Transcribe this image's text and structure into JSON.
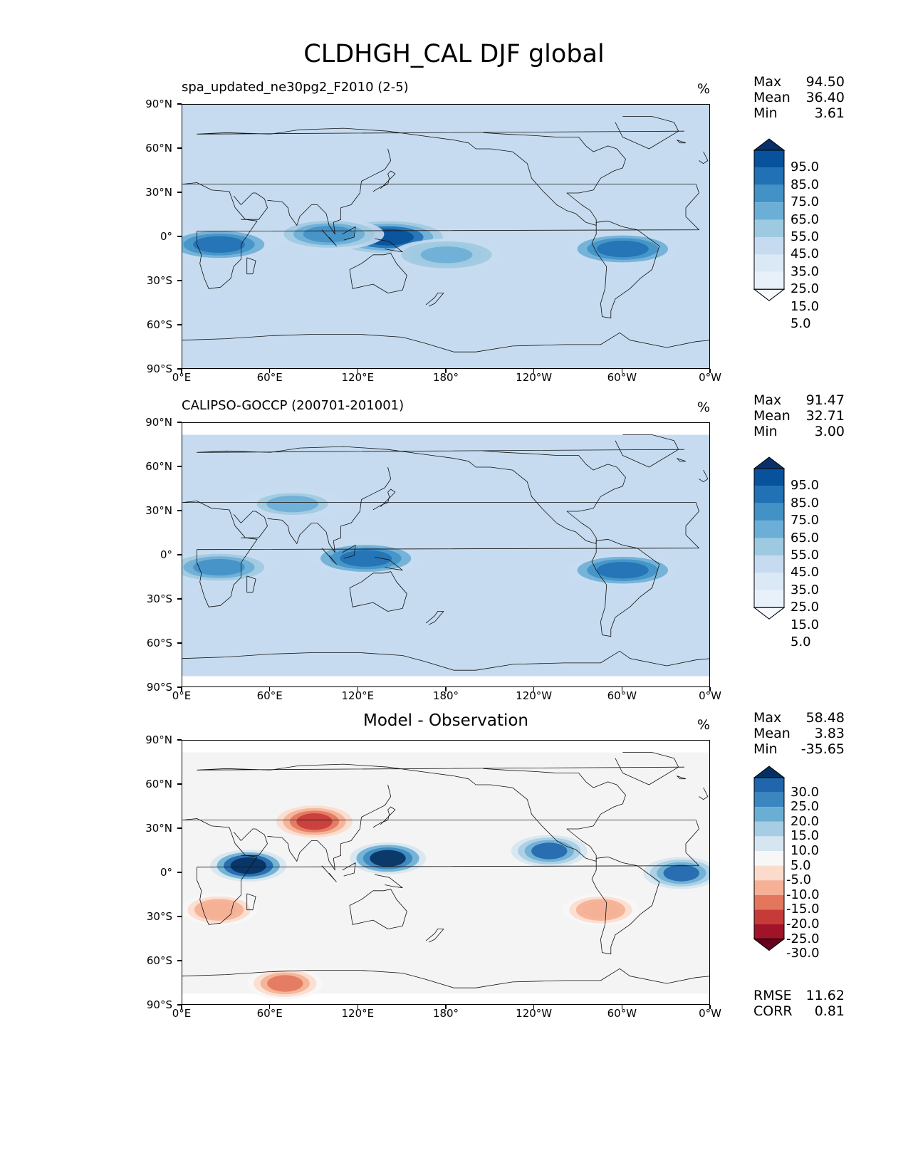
{
  "title": "CLDHGH_CAL DJF global",
  "panels": [
    {
      "name": "model",
      "left_title": "spa_updated_ne30pg2_F2010 (2-5)",
      "center_title": "",
      "units": "%",
      "stats": [
        [
          "Max",
          "94.50"
        ],
        [
          "Mean",
          "36.40"
        ],
        [
          "Min",
          "3.61"
        ]
      ],
      "colorbar": {
        "labels": [
          "95.0",
          "85.0",
          "75.0",
          "65.0",
          "55.0",
          "45.0",
          "35.0",
          "25.0",
          "15.0",
          "5.0"
        ],
        "colors": [
          "#08306b",
          "#08519c",
          "#2171b5",
          "#4292c6",
          "#6baed6",
          "#9ecae1",
          "#c6dbef",
          "#dbe9f6",
          "#e8f1fa",
          "#f7fbff"
        ]
      },
      "bottom_stats": []
    },
    {
      "name": "observation",
      "left_title": "CALIPSO-GOCCP (200701-201001)",
      "center_title": "",
      "units": "%",
      "stats": [
        [
          "Max",
          "91.47"
        ],
        [
          "Mean",
          "32.71"
        ],
        [
          "Min",
          "3.00"
        ]
      ],
      "colorbar": {
        "labels": [
          "95.0",
          "85.0",
          "75.0",
          "65.0",
          "55.0",
          "45.0",
          "35.0",
          "25.0",
          "15.0",
          "5.0"
        ],
        "colors": [
          "#08306b",
          "#08519c",
          "#2171b5",
          "#4292c6",
          "#6baed6",
          "#9ecae1",
          "#c6dbef",
          "#dbe9f6",
          "#e8f1fa",
          "#f7fbff"
        ]
      },
      "bottom_stats": []
    },
    {
      "name": "difference",
      "left_title": "",
      "center_title": "Model - Observation",
      "units": "%",
      "stats": [
        [
          "Max",
          "58.48"
        ],
        [
          "Mean",
          "3.83"
        ],
        [
          "Min",
          "-35.65"
        ]
      ],
      "colorbar": {
        "labels": [
          "30.0",
          "25.0",
          "20.0",
          "15.0",
          "10.0",
          "5.0",
          "-5.0",
          "-10.0",
          "-15.0",
          "-20.0",
          "-25.0",
          "-30.0"
        ],
        "colors": [
          "#053061",
          "#2166ac",
          "#3a87c0",
          "#6aaed3",
          "#a6cde3",
          "#d6e6f0",
          "#f7f7f7",
          "#fbdccc",
          "#f5b095",
          "#e2775e",
          "#c63b38",
          "#a01328",
          "#67001f"
        ]
      },
      "bottom_stats": [
        [
          "RMSE",
          "11.62"
        ],
        [
          "CORR",
          "0.81"
        ]
      ]
    }
  ],
  "axes": {
    "yticks": [
      "90°N",
      "60°N",
      "30°N",
      "0°",
      "30°S",
      "60°S",
      "90°S"
    ],
    "xticks": [
      "0°E",
      "60°E",
      "120°E",
      "180°",
      "120°W",
      "60°W",
      "0°W"
    ]
  },
  "chart_data": [
    {
      "type": "heatmap",
      "title": "spa_updated_ne30pg2_F2010 (2-5)",
      "units": "%",
      "xlim": [
        0,
        360
      ],
      "ylim": [
        -90,
        90
      ],
      "levels": [
        5,
        15,
        25,
        35,
        45,
        55,
        65,
        75,
        85,
        95
      ],
      "max": 94.5,
      "mean": 36.4,
      "min": 3.61,
      "features": [
        {
          "lon": 25,
          "lat": -5,
          "value": 80
        },
        {
          "lon": 140,
          "lat": 0,
          "value": 90
        },
        {
          "lon": 300,
          "lat": -8,
          "value": 80
        },
        {
          "lon": 180,
          "lat": -12,
          "value": 60
        },
        {
          "lon": 100,
          "lat": 2,
          "value": 70
        }
      ]
    },
    {
      "type": "heatmap",
      "title": "CALIPSO-GOCCP (200701-201001)",
      "units": "%",
      "xlim": [
        0,
        360
      ],
      "ylim": [
        -90,
        90
      ],
      "levels": [
        5,
        15,
        25,
        35,
        45,
        55,
        65,
        75,
        85,
        95
      ],
      "max": 91.47,
      "mean": 32.71,
      "min": 3.0,
      "features": [
        {
          "lon": 25,
          "lat": -8,
          "value": 70
        },
        {
          "lon": 125,
          "lat": -2,
          "value": 80
        },
        {
          "lon": 300,
          "lat": -10,
          "value": 80
        },
        {
          "lon": 75,
          "lat": 35,
          "value": 55
        }
      ]
    },
    {
      "type": "heatmap",
      "title": "Model - Observation",
      "units": "%",
      "xlim": [
        0,
        360
      ],
      "ylim": [
        -90,
        90
      ],
      "levels": [
        -30,
        -25,
        -20,
        -15,
        -10,
        -5,
        5,
        10,
        15,
        20,
        25,
        30
      ],
      "max": 58.48,
      "mean": 3.83,
      "min": -35.65,
      "rmse": 11.62,
      "corr": 0.81,
      "features": [
        {
          "lon": 45,
          "lat": 5,
          "value": 35
        },
        {
          "lon": 140,
          "lat": 10,
          "value": 30
        },
        {
          "lon": 90,
          "lat": 35,
          "value": -25
        },
        {
          "lon": 70,
          "lat": -75,
          "value": -20
        },
        {
          "lon": 250,
          "lat": 15,
          "value": 25
        },
        {
          "lon": 340,
          "lat": 0,
          "value": 25
        },
        {
          "lon": 285,
          "lat": -25,
          "value": -15
        },
        {
          "lon": 25,
          "lat": -25,
          "value": -15
        }
      ]
    }
  ]
}
